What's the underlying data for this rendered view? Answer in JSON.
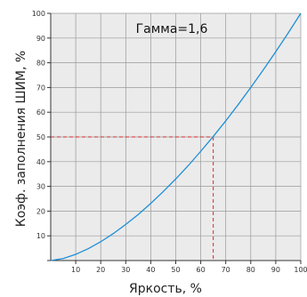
{
  "chart_data": {
    "type": "line",
    "xlabel": "Яркость, %",
    "ylabel": "Коэф. заполнения ШИМ, %",
    "annotation": "Гамма=1,6",
    "xlim": [
      0,
      100
    ],
    "ylim": [
      0,
      100
    ],
    "x_ticks": [
      "10",
      "20",
      "30",
      "40",
      "50",
      "60",
      "70",
      "80",
      "90",
      "100"
    ],
    "y_ticks": [
      "10",
      "20",
      "30",
      "40",
      "50",
      "60",
      "70",
      "80",
      "90",
      "100"
    ],
    "grid": true,
    "series": [
      {
        "x": [
          0,
          5,
          10,
          15,
          20,
          25,
          30,
          35,
          40,
          45,
          50,
          55,
          60,
          65,
          70,
          75,
          80,
          85,
          90,
          95,
          100
        ],
        "y": [
          0,
          0.8,
          2.5,
          4.8,
          7.6,
          10.9,
          14.6,
          18.6,
          23.1,
          27.9,
          33.0,
          38.4,
          44.2,
          50.2,
          56.5,
          63.1,
          70.0,
          77.1,
          84.5,
          92.1,
          100.0
        ],
        "color": "#1e8fd6"
      }
    ],
    "reference_point": {
      "x": 65,
      "y": 50,
      "color": "#d62a2a"
    }
  }
}
